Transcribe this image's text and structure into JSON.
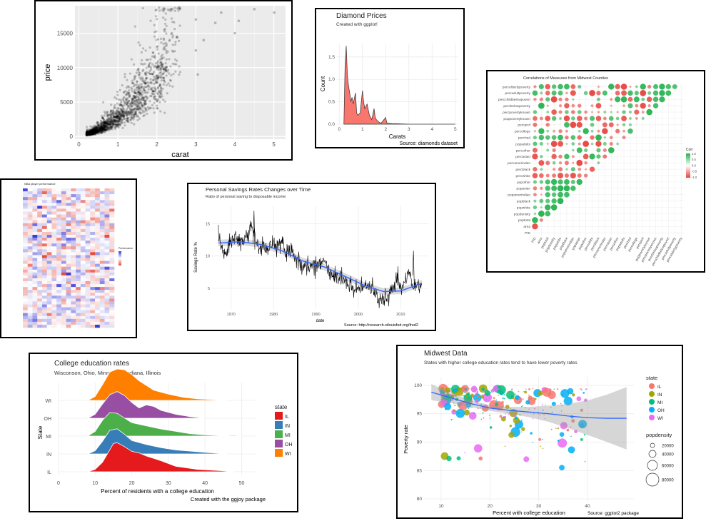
{
  "chart_data": [
    {
      "id": "diamonds-scatter",
      "type": "scatter",
      "title": "",
      "xlabel": "carat",
      "ylabel": "price",
      "xlim": [
        -0.1,
        5.3
      ],
      "ylim": [
        -400,
        19000
      ],
      "x_ticks": [
        0,
        1,
        2,
        3,
        4,
        5
      ],
      "y_ticks": [
        0,
        5000,
        10000,
        15000
      ],
      "grid": true,
      "colors": {
        "background": "#ebebeb",
        "grid": "#ffffff",
        "points": "#000000"
      }
    },
    {
      "id": "diamond-density",
      "type": "area",
      "title": "Diamond Prices",
      "subtitle": "Created with ggplot!",
      "caption": "Source: diamonds dataset",
      "xlabel": "Carats",
      "ylabel": "Count",
      "xlim": [
        -0.1,
        5.1
      ],
      "ylim": [
        0,
        1.8
      ],
      "x_ticks": [
        0,
        1,
        2,
        3,
        4,
        5
      ],
      "y_ticks": [
        0.0,
        0.5,
        1.0,
        1.5
      ],
      "x": [
        0.2,
        0.25,
        0.3,
        0.35,
        0.4,
        0.45,
        0.5,
        0.55,
        0.6,
        0.7,
        0.75,
        0.8,
        0.9,
        1.0,
        1.05,
        1.1,
        1.2,
        1.3,
        1.4,
        1.5,
        1.55,
        1.6,
        1.7,
        1.8,
        2.0,
        2.05,
        2.1,
        2.3,
        2.5,
        3.0,
        3.5,
        4.0,
        5.0
      ],
      "y": [
        0,
        1.3,
        1.75,
        1.1,
        0.85,
        0.7,
        0.5,
        0.6,
        0.45,
        0.7,
        0.25,
        0.2,
        0.25,
        0.75,
        0.5,
        0.35,
        0.45,
        0.2,
        0.1,
        0.35,
        0.15,
        0.1,
        0.05,
        0.02,
        0.15,
        0.03,
        0.02,
        0.01,
        0.01,
        0,
        0,
        0,
        0
      ],
      "grid": true,
      "colors": {
        "fill": "#f8766d",
        "line": "#333333"
      }
    },
    {
      "id": "midwest-correlogram",
      "type": "heatmap",
      "title": "Correlations of Measures from Midwest Counties",
      "variables": [
        "PID",
        "area",
        "poptotal",
        "popdensity",
        "popwhite",
        "popblack",
        "popamerindian",
        "popasian",
        "popother",
        "percwhite",
        "percblack",
        "percamerindan",
        "percasian",
        "percother",
        "popadults",
        "perchsd",
        "percollege",
        "percprof",
        "poppovertyknown",
        "percpovertyknown",
        "percbelowpoverty",
        "percchildbelowpovert",
        "percadultpoverty",
        "percelderlypoverty"
      ],
      "legend_title": "Corr",
      "legend_ticks": [
        "1.0",
        "0.5",
        "0.0",
        "-0.5",
        "-1.0"
      ],
      "legend_position": "right",
      "colors": {
        "positive": "#22b14c",
        "negative": "#e8413c",
        "neutral": "#eeeeee"
      }
    },
    {
      "id": "nba-heatmap",
      "type": "heatmap",
      "title": "NBA player performance",
      "legend_title": "Performance",
      "legend_position": "right",
      "rows": 48,
      "cols": 19,
      "colors": {
        "high": "#3b3bd6",
        "low": "#e84a3a",
        "mid": "#ffffff"
      }
    },
    {
      "id": "savings-rate",
      "type": "line",
      "title": "Personal Savings Rates Changes over Time",
      "subtitle": "Ratio of personal saving to disposable income",
      "caption": "Source:  http://research.stlouisfed.org/fred2",
      "xlabel": "date",
      "ylabel": "Savings Rate %",
      "xlim": [
        1965.5,
        2016.5
      ],
      "ylim": [
        1.8,
        17.8
      ],
      "x_ticks": [
        1970,
        1980,
        1990,
        2000,
        2010
      ],
      "y_ticks": [
        5,
        10,
        15
      ],
      "x": [
        1967,
        1968,
        1969,
        1970,
        1971,
        1972,
        1973,
        1974,
        1975,
        1976,
        1977,
        1978,
        1979,
        1980,
        1981,
        1982,
        1983,
        1984,
        1985,
        1986,
        1987,
        1988,
        1989,
        1990,
        1991,
        1992,
        1993,
        1994,
        1995,
        1996,
        1997,
        1998,
        1999,
        2000,
        2001,
        2002,
        2003,
        2004,
        2005,
        2006,
        2007,
        2008,
        2009,
        2010,
        2011,
        2012,
        2013,
        2014,
        2015
      ],
      "y": [
        12.3,
        11.0,
        10.8,
        12.4,
        13.2,
        12.0,
        12.8,
        13.4,
        14.9,
        11.8,
        11.0,
        11.2,
        11.5,
        12.0,
        11.6,
        12.5,
        10.0,
        11.0,
        9.5,
        9.0,
        8.0,
        8.5,
        8.4,
        8.3,
        8.7,
        9.4,
        7.5,
        6.8,
        6.9,
        6.4,
        6.0,
        5.8,
        4.7,
        4.6,
        5.0,
        5.3,
        5.2,
        4.5,
        3.1,
        3.3,
        3.7,
        5.0,
        6.1,
        5.6,
        6.0,
        7.6,
        5.0,
        5.5,
        5.4
      ],
      "trend_x": [
        1967,
        1972,
        1977,
        1982,
        1987,
        1992,
        1997,
        2002,
        2006,
        2010,
        2015
      ],
      "trend_y": [
        12.0,
        12.2,
        11.8,
        10.8,
        9.2,
        8.3,
        6.8,
        5.3,
        4.5,
        4.6,
        5.8
      ],
      "grid": true,
      "colors": {
        "line": "#000000",
        "trend": "#3366ff"
      }
    },
    {
      "id": "college-ridgeline",
      "type": "area",
      "title": "College education rates",
      "subtitle": "Wisconson, Ohio, Minnesota, Indiana, Illinois",
      "caption": "Created with the ggjoy package",
      "xlabel": "Percent of residents with a college education",
      "ylabel": "State",
      "xlim": [
        0,
        54
      ],
      "x_ticks": [
        0,
        10,
        20,
        30,
        40,
        50
      ],
      "categories": [
        "IL",
        "IN",
        "MI",
        "OH",
        "WI"
      ],
      "legend_title": "state",
      "legend_position": "right",
      "series": [
        {
          "name": "IL",
          "color": "#e41a1c",
          "x": [
            8,
            10,
            12,
            14,
            15,
            16,
            18,
            20,
            22,
            24,
            28,
            32,
            38,
            44,
            48
          ],
          "y": [
            0,
            0.3,
            1.2,
            2.8,
            3.6,
            3.7,
            3.2,
            2.6,
            2.4,
            2.0,
            1.4,
            0.7,
            0.3,
            0.15,
            0
          ]
        },
        {
          "name": "IN",
          "color": "#377eb8",
          "x": [
            8,
            10,
            12,
            14,
            16,
            18,
            20,
            24,
            28,
            32,
            36,
            40,
            46
          ],
          "y": [
            0,
            0.4,
            1.6,
            3.0,
            3.2,
            2.5,
            1.7,
            1.2,
            0.8,
            0.5,
            0.35,
            0.2,
            0
          ]
        },
        {
          "name": "MI",
          "color": "#4daf4a",
          "x": [
            8,
            10,
            12,
            14,
            16,
            18,
            20,
            24,
            28,
            32,
            36,
            40,
            45,
            48,
            50
          ],
          "y": [
            0,
            0.6,
            2.0,
            3.0,
            2.9,
            2.3,
            1.7,
            1.3,
            0.9,
            0.6,
            0.3,
            0.15,
            0.05,
            0.1,
            0
          ]
        },
        {
          "name": "OH",
          "color": "#984ea3",
          "x": [
            8,
            10,
            12,
            14,
            16,
            18,
            20,
            22,
            24,
            26,
            28,
            32,
            36,
            40
          ],
          "y": [
            0,
            0.5,
            1.8,
            3.0,
            3.4,
            2.9,
            2.0,
            1.3,
            1.7,
            1.5,
            1.0,
            0.5,
            0.2,
            0
          ]
        },
        {
          "name": "WI",
          "color": "#ff7f00",
          "x": [
            8,
            10,
            12,
            14,
            16,
            18,
            20,
            22,
            26,
            30,
            34,
            38,
            42,
            46
          ],
          "y": [
            0,
            0.5,
            2.0,
            3.6,
            4.0,
            3.9,
            3.3,
            2.5,
            1.3,
            0.8,
            0.4,
            0.2,
            0.1,
            0
          ]
        }
      ]
    },
    {
      "id": "midwest-scatter",
      "type": "scatter",
      "title": "Midwest Data",
      "subtitle": "States with higher college education rates tend to have lower poverty rates",
      "caption": "Source: ggplot2 package",
      "xlabel": "Percent with college education",
      "ylabel": "Poverty rate",
      "xlim": [
        6.5,
        49.5
      ],
      "ylim": [
        79.5,
        101.5
      ],
      "x_ticks": [
        10,
        20,
        30,
        40
      ],
      "y_ticks": [
        80,
        85,
        90,
        95,
        100
      ],
      "legend_title": "state",
      "size_legend_title": "popdensity",
      "size_legend_values": [
        "20000",
        "40000",
        "60000",
        "80000"
      ],
      "legend_position": "right",
      "series": [
        {
          "name": "IL",
          "color": "#f8766d"
        },
        {
          "name": "IN",
          "color": "#a3a500"
        },
        {
          "name": "MI",
          "color": "#00bf7d"
        },
        {
          "name": "OH",
          "color": "#00b0f6"
        },
        {
          "name": "WI",
          "color": "#e76bf3"
        }
      ],
      "trend_x": [
        8,
        12,
        16,
        20,
        24,
        28,
        32,
        36,
        40,
        44,
        48
      ],
      "trend_y": [
        98.8,
        97.8,
        96.8,
        96.0,
        95.6,
        95.3,
        95.0,
        94.6,
        94.3,
        94.2,
        94.2
      ],
      "grid": true
    }
  ]
}
